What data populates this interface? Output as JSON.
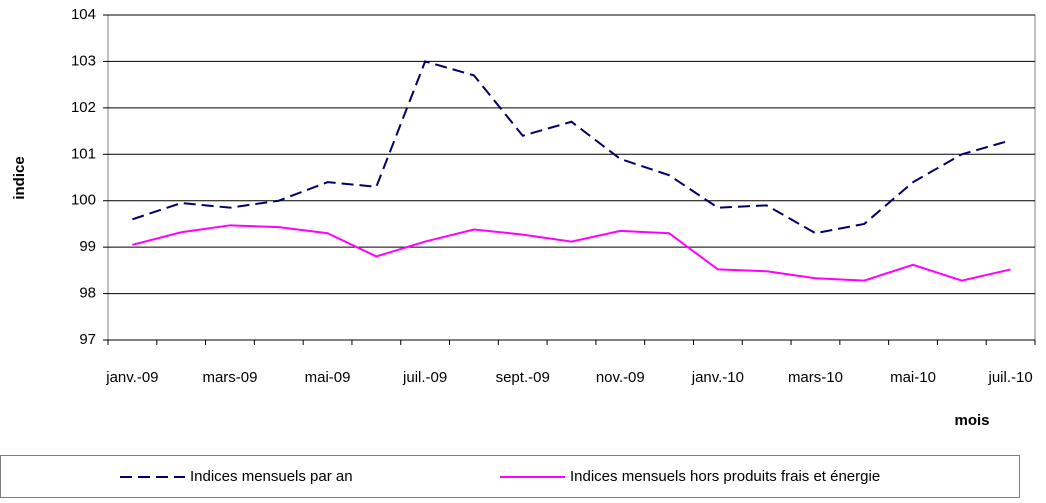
{
  "chart_data": {
    "type": "line",
    "x_label": "mois",
    "y_label": "indice",
    "categories": [
      "janv.-09",
      null,
      "mars-09",
      null,
      "mai-09",
      null,
      "juil.-09",
      null,
      "sept.-09",
      null,
      "nov.-09",
      null,
      "janv.-10",
      null,
      "mars-10",
      null,
      "mai-10",
      null,
      "juil.-10"
    ],
    "series": [
      {
        "name": "Indices mensuels par an",
        "color": "#000066",
        "dashed": true,
        "values": [
          99.6,
          99.95,
          99.85,
          100.0,
          100.4,
          100.3,
          103.0,
          102.7,
          101.4,
          101.7,
          100.9,
          100.55,
          99.85,
          99.9,
          99.3,
          99.5,
          100.4,
          101.0,
          101.3
        ]
      },
      {
        "name": "Indices mensuels hors produits frais et énergie",
        "color": "#ff00ff",
        "dashed": false,
        "values": [
          99.05,
          99.32,
          99.47,
          99.43,
          99.3,
          98.8,
          99.12,
          99.38,
          99.27,
          99.12,
          99.35,
          99.3,
          98.52,
          98.48,
          98.33,
          98.28,
          98.62,
          98.28,
          98.52
        ]
      }
    ],
    "ylim": [
      97,
      104
    ],
    "yticks": [
      97,
      98,
      99,
      100,
      101,
      102,
      103,
      104
    ],
    "grid": true,
    "legend": "bottom"
  }
}
